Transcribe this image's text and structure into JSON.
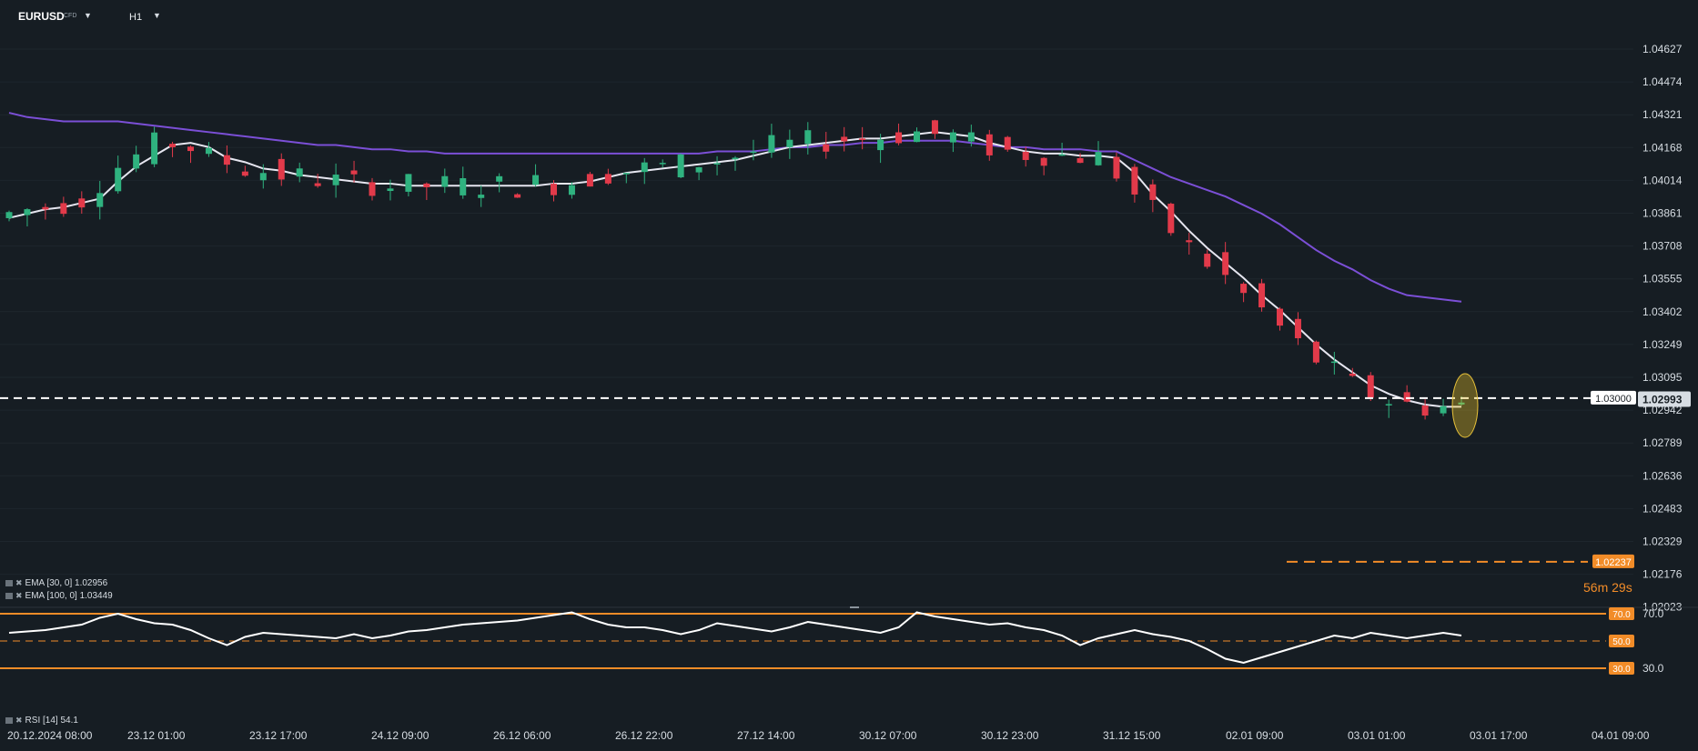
{
  "header": {
    "symbol": "EURUSD",
    "symbol_type": "CFD",
    "timeframe": "H1"
  },
  "indicators": {
    "ema30": "EMA [30, 0] 1.02956",
    "ema100": "EMA [100, 0] 1.03449",
    "rsi": "RSI [14] 54.1"
  },
  "countdown": {
    "minutes": "56m",
    "seconds": "29s"
  },
  "colors": {
    "background": "#161d23",
    "bull": "#2fb27f",
    "bear": "#e23a4a",
    "ema30": "#e6e6f0",
    "ema100": "#7b4fd6",
    "rsi_line": "#ffffff",
    "rsi_band": "#f28c28",
    "accent": "#f28c28"
  },
  "chart_data": {
    "type": "candlestick",
    "price_axis": {
      "ticks": [
        "1.04627",
        "1.04474",
        "1.04321",
        "1.04168",
        "1.04014",
        "1.03861",
        "1.03708",
        "1.03555",
        "1.03402",
        "1.03249",
        "1.03095",
        "1.02942",
        "1.02789",
        "1.02636",
        "1.02483",
        "1.02329",
        "1.02176",
        "1.02023"
      ],
      "range": [
        1.02023,
        1.04627
      ]
    },
    "time_axis": {
      "labels": [
        "20.12.2024  08:00",
        "23.12  01:00",
        "23.12  17:00",
        "24.12  09:00",
        "26.12  06:00",
        "26.12  22:00",
        "27.12  14:00",
        "30.12  07:00",
        "30.12  23:00",
        "31.12  15:00",
        "02.01  09:00",
        "03.01  01:00",
        "03.01  17:00",
        "04.01  09:00"
      ]
    },
    "horizontal_line": {
      "label": "1.03000",
      "value": 1.03
    },
    "last_price": {
      "label": "1.02993",
      "value": 1.02993
    },
    "low_marker": {
      "label": "1.02237",
      "value": 1.02237
    },
    "ema30_values": [
      1.0384,
      1.0386,
      1.0388,
      1.0389,
      1.0391,
      1.0393,
      1.0401,
      1.0408,
      1.0413,
      1.0418,
      1.0419,
      1.0417,
      1.0412,
      1.041,
      1.0407,
      1.0406,
      1.0404,
      1.0403,
      1.0402,
      1.0401,
      1.04,
      1.04,
      1.0399,
      1.0399,
      1.0399,
      1.0399,
      1.0399,
      1.0399,
      1.0399,
      1.0399,
      1.04,
      1.04,
      1.0401,
      1.0403,
      1.0405,
      1.0406,
      1.0407,
      1.0408,
      1.0409,
      1.041,
      1.0411,
      1.0413,
      1.0415,
      1.0417,
      1.0418,
      1.0419,
      1.042,
      1.0421,
      1.0421,
      1.0422,
      1.0423,
      1.0424,
      1.0423,
      1.0422,
      1.0419,
      1.0417,
      1.0415,
      1.0414,
      1.0414,
      1.0413,
      1.0413,
      1.0412,
      1.0405,
      1.0395,
      1.0387,
      1.0378,
      1.037,
      1.0363,
      1.0356,
      1.0348,
      1.0341,
      1.0333,
      1.0325,
      1.0318,
      1.0312,
      1.0306,
      1.0302,
      1.0299,
      1.0297,
      1.0296,
      1.0296
    ],
    "ema100_values": [
      1.0433,
      1.0431,
      1.043,
      1.0429,
      1.0429,
      1.0429,
      1.0429,
      1.0428,
      1.0427,
      1.0426,
      1.0425,
      1.0424,
      1.0423,
      1.0422,
      1.0421,
      1.042,
      1.0419,
      1.0418,
      1.0418,
      1.0417,
      1.0416,
      1.0416,
      1.0415,
      1.0415,
      1.0414,
      1.0414,
      1.0414,
      1.0414,
      1.0414,
      1.0414,
      1.0414,
      1.0414,
      1.0414,
      1.0414,
      1.0414,
      1.0414,
      1.0414,
      1.0414,
      1.0414,
      1.0415,
      1.0415,
      1.0415,
      1.0416,
      1.0417,
      1.0417,
      1.0418,
      1.0418,
      1.0419,
      1.0419,
      1.042,
      1.042,
      1.042,
      1.042,
      1.0419,
      1.0418,
      1.0417,
      1.0417,
      1.0416,
      1.0416,
      1.0416,
      1.0415,
      1.0415,
      1.0411,
      1.0407,
      1.0403,
      1.04,
      1.0397,
      1.0394,
      1.039,
      1.0386,
      1.0381,
      1.0375,
      1.0369,
      1.0364,
      1.036,
      1.0355,
      1.0351,
      1.0348,
      1.0347,
      1.0346,
      1.0345
    ],
    "rsi": {
      "levels": [
        "70.0",
        "50.0",
        "30.0"
      ],
      "axis_labels": [
        "70.0",
        "30.0"
      ],
      "values": [
        56,
        57,
        58,
        60,
        62,
        67,
        70,
        66,
        63,
        62,
        58,
        52,
        47,
        53,
        56,
        55,
        54,
        53,
        52,
        55,
        52,
        54,
        57,
        58,
        60,
        62,
        63,
        64,
        65,
        67,
        69,
        71,
        66,
        62,
        60,
        60,
        58,
        55,
        58,
        63,
        61,
        59,
        57,
        60,
        64,
        62,
        60,
        58,
        56,
        60,
        71,
        68,
        66,
        64,
        62,
        63,
        60,
        58,
        54,
        47,
        52,
        55,
        58,
        55,
        53,
        50,
        44,
        37,
        34,
        38,
        42,
        46,
        50,
        54,
        52,
        56,
        54,
        52,
        54,
        56,
        54
      ]
    }
  }
}
